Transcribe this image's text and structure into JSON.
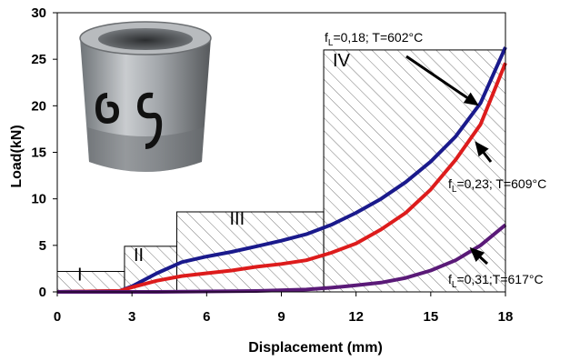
{
  "chart_data": {
    "type": "line",
    "title": "",
    "xlabel": "Displacement (mm)",
    "ylabel": "Load(kN)",
    "xlim": [
      0,
      18
    ],
    "ylim": [
      0,
      30
    ],
    "xticks": [
      "0",
      "3",
      "6",
      "9",
      "12",
      "15",
      "18"
    ],
    "yticks": [
      "0",
      "5",
      "10",
      "15",
      "20",
      "25",
      "30"
    ],
    "grid": false,
    "series": [
      {
        "name": "f_L=0,18; T=602°C",
        "color": "#1a1a8c",
        "x": [
          0,
          2.5,
          3,
          4,
          5,
          6,
          7,
          8,
          9,
          10,
          11,
          12,
          13,
          14,
          15,
          16,
          17,
          18
        ],
        "y": [
          0,
          0.1,
          0.6,
          2.0,
          3.2,
          3.8,
          4.3,
          4.9,
          5.5,
          6.2,
          7.2,
          8.5,
          10.0,
          11.8,
          14.0,
          16.7,
          20.3,
          26.3
        ]
      },
      {
        "name": "f_L=0,23; T=609°C",
        "color": "#dd1c1c",
        "x": [
          0,
          2.5,
          3,
          4,
          5,
          6,
          7,
          8,
          9,
          10,
          11,
          12,
          13,
          14,
          15,
          16,
          17,
          18
        ],
        "y": [
          0,
          0.1,
          0.5,
          1.2,
          1.7,
          2.0,
          2.3,
          2.7,
          3.0,
          3.4,
          4.2,
          5.2,
          6.7,
          8.5,
          11.0,
          14.2,
          18.0,
          24.6
        ]
      },
      {
        "name": "f_L=0,31;T=617°C",
        "color": "#5a1a78",
        "x": [
          0,
          2,
          4,
          6,
          8,
          10,
          11,
          12,
          13,
          14,
          15,
          16,
          17,
          18
        ],
        "y": [
          0,
          0,
          0,
          0.05,
          0.1,
          0.25,
          0.45,
          0.7,
          1.0,
          1.5,
          2.3,
          3.4,
          5.0,
          7.2
        ]
      }
    ],
    "regions": [
      {
        "label": "I",
        "x0": 0,
        "x1": 2.7,
        "height": 2.2
      },
      {
        "label": "II",
        "x0": 2.7,
        "x1": 4.8,
        "height": 4.9
      },
      {
        "label": "III",
        "x0": 4.8,
        "x1": 10.7,
        "height": 8.6
      },
      {
        "label": "IV",
        "x0": 10.7,
        "x1": 18,
        "height": 26
      }
    ],
    "annotations": [
      {
        "main": "f",
        "sub": "L",
        "rest": "=0,18; T=602°C",
        "series": 0
      },
      {
        "main": "f",
        "sub": "L",
        "rest": "=0,23; T=609°C",
        "series": 1
      },
      {
        "main": "f",
        "sub": "L",
        "rest": "=0,31;T=617°C",
        "series": 2
      }
    ]
  }
}
